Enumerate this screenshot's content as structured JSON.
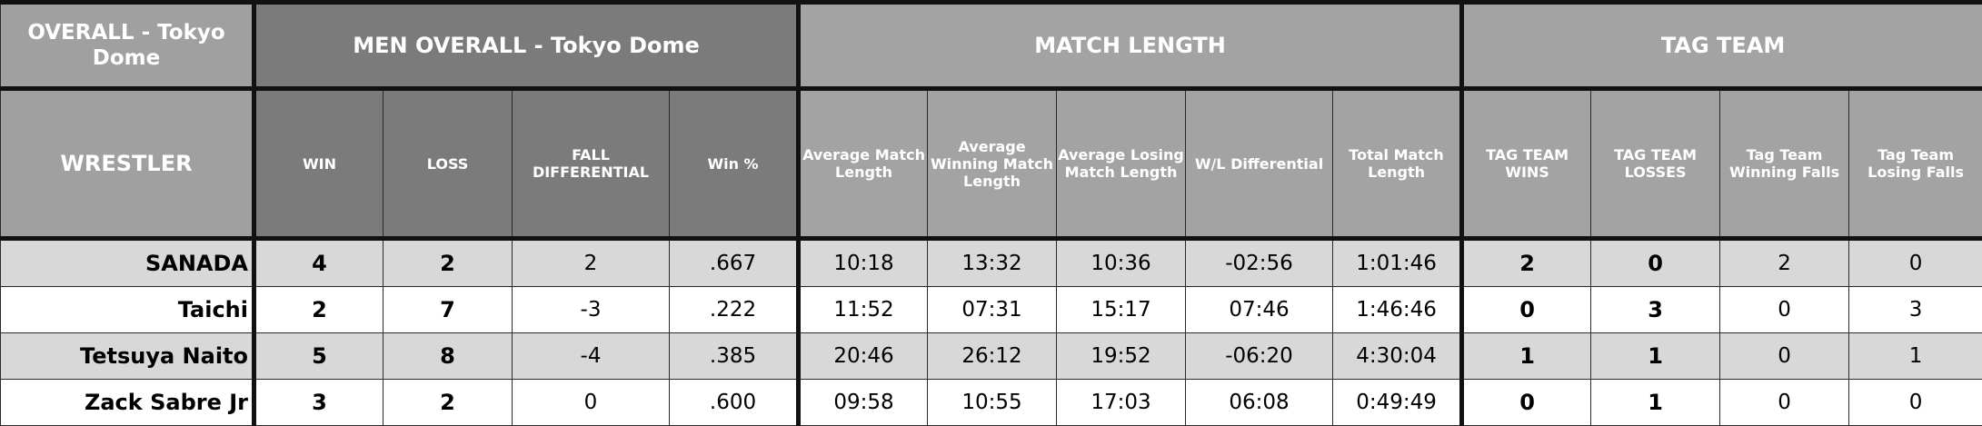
{
  "header": {
    "top_left": "OVERALL - Tokyo Dome",
    "men_overall": "MEN OVERALL - Tokyo Dome",
    "match_length": "MATCH LENGTH",
    "tag_team": "TAG TEAM",
    "wrestler": "WRESTLER"
  },
  "columns": {
    "win": "WIN",
    "loss": "LOSS",
    "fall_diff": "FALL DIFFERENTIAL",
    "win_pct": "Win %",
    "avg_len": "Average Match Length",
    "avg_win_len": "Average Winning Match Length",
    "avg_lose_len": "Average Losing Match Length",
    "wl_diff": "W/L Differential",
    "total_len": "Total Match Length",
    "tt_wins": "TAG TEAM WINS",
    "tt_losses": "TAG TEAM LOSSES",
    "tt_win_falls": "Tag Team Winning Falls",
    "tt_lose_falls": "Tag Team Losing Falls"
  },
  "rows": [
    {
      "wrestler": "SANADA",
      "win": "4",
      "loss": "2",
      "fall_diff": "2",
      "win_pct": ".667",
      "avg_len": "10:18",
      "avg_win_len": "13:32",
      "avg_lose_len": "10:36",
      "wl_diff": "-02:56",
      "total_len": "1:01:46",
      "tt_wins": "2",
      "tt_losses": "0",
      "tt_win_falls": "2",
      "tt_lose_falls": "0"
    },
    {
      "wrestler": "Taichi",
      "win": "2",
      "loss": "7",
      "fall_diff": "-3",
      "win_pct": ".222",
      "avg_len": "11:52",
      "avg_win_len": "07:31",
      "avg_lose_len": "15:17",
      "wl_diff": "07:46",
      "total_len": "1:46:46",
      "tt_wins": "0",
      "tt_losses": "3",
      "tt_win_falls": "0",
      "tt_lose_falls": "3"
    },
    {
      "wrestler": "Tetsuya Naito",
      "win": "5",
      "loss": "8",
      "fall_diff": "-4",
      "win_pct": ".385",
      "avg_len": "20:46",
      "avg_win_len": "26:12",
      "avg_lose_len": "19:52",
      "wl_diff": "-06:20",
      "total_len": "4:30:04",
      "tt_wins": "1",
      "tt_losses": "1",
      "tt_win_falls": "0",
      "tt_lose_falls": "1"
    },
    {
      "wrestler": "Zack Sabre Jr",
      "win": "3",
      "loss": "2",
      "fall_diff": "0",
      "win_pct": ".600",
      "avg_len": "09:58",
      "avg_win_len": "10:55",
      "avg_lose_len": "17:03",
      "wl_diff": "06:08",
      "total_len": "0:49:49",
      "tt_wins": "0",
      "tt_losses": "1",
      "tt_win_falls": "0",
      "tt_lose_falls": "0"
    }
  ]
}
